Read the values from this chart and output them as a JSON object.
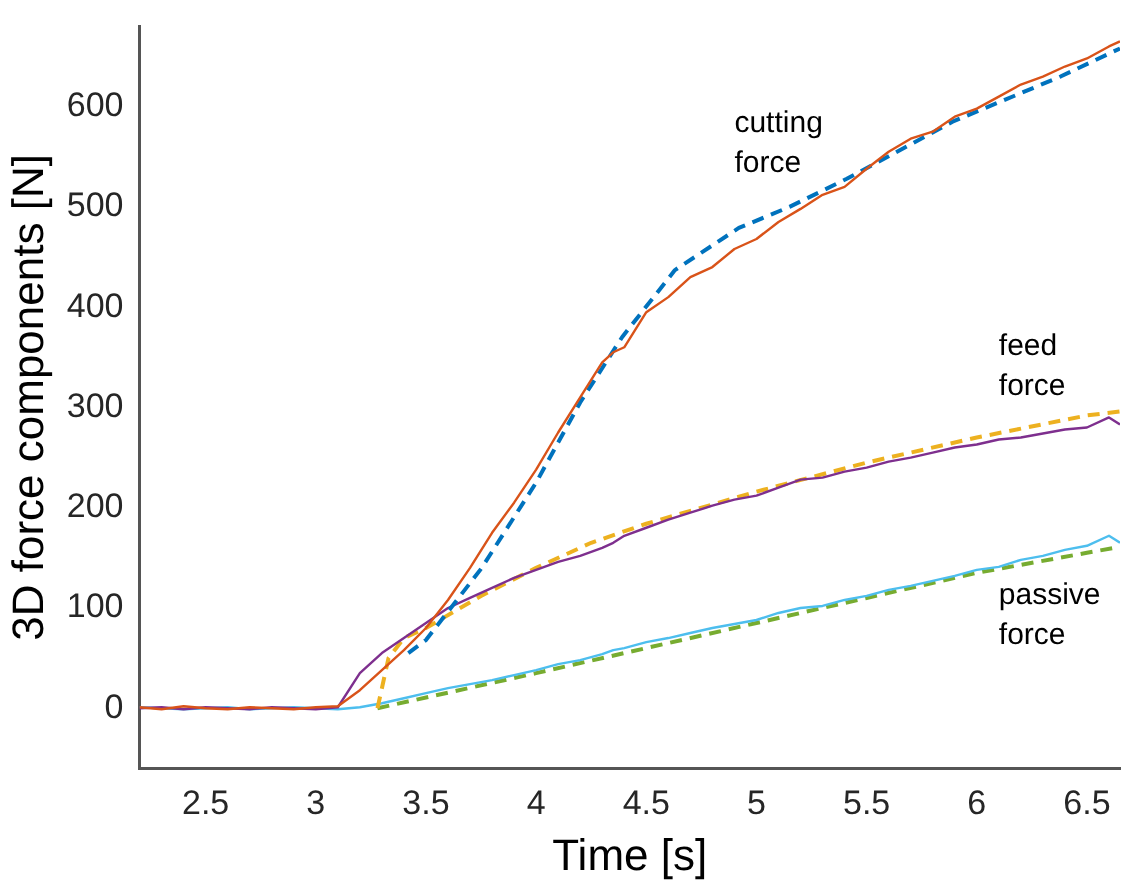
{
  "chart_data": {
    "type": "line",
    "xlabel": "Time [s]",
    "ylabel": "3D force components [N]",
    "xlim": [
      2.2,
      6.65
    ],
    "xticks": [
      2.5,
      3,
      3.5,
      4,
      4.5,
      5,
      5.5,
      6,
      6.5
    ],
    "ylim": [
      -60,
      680
    ],
    "yticks": [
      0,
      100,
      200,
      300,
      400,
      500,
      600
    ],
    "grid": false,
    "legend": false,
    "marker": "none",
    "series": [
      {
        "name": "cutting force",
        "color": "#d95319",
        "line_style": "solid",
        "x": [
          2.2,
          2.3,
          2.4,
          2.5,
          2.6,
          2.7,
          2.8,
          2.9,
          3.0,
          3.1,
          3.2,
          3.3,
          3.4,
          3.5,
          3.6,
          3.7,
          3.8,
          3.9,
          4.0,
          4.1,
          4.2,
          4.3,
          4.35,
          4.4,
          4.5,
          4.6,
          4.7,
          4.8,
          4.9,
          5.0,
          5.1,
          5.2,
          5.3,
          5.4,
          5.5,
          5.6,
          5.7,
          5.8,
          5.9,
          6.0,
          6.1,
          6.2,
          6.3,
          6.4,
          6.5,
          6.6,
          6.65
        ],
        "values": [
          1,
          -1,
          2,
          0,
          -1,
          1,
          0,
          -1,
          1,
          2,
          18,
          38,
          58,
          80,
          108,
          140,
          175,
          205,
          238,
          275,
          310,
          345,
          355,
          360,
          395,
          410,
          430,
          440,
          458,
          468,
          485,
          498,
          512,
          520,
          538,
          555,
          568,
          575,
          590,
          598,
          610,
          622,
          630,
          640,
          648,
          660,
          665
        ]
      },
      {
        "color": "#0072bd",
        "line_style": "dashed",
        "x": [
          3.42,
          3.5,
          3.75,
          4.0,
          4.2,
          4.39,
          4.63,
          4.92,
          5.15,
          5.41,
          5.89,
          6.38,
          6.65
        ],
        "values": [
          55,
          68,
          139,
          225,
          305,
          370,
          437,
          479,
          500,
          528,
          585,
          630,
          658
        ]
      },
      {
        "name": "feed force",
        "color": "#7e2f8e",
        "line_style": "solid",
        "x": [
          2.2,
          2.3,
          2.4,
          2.5,
          2.6,
          2.7,
          2.8,
          2.9,
          3.0,
          3.1,
          3.2,
          3.3,
          3.4,
          3.5,
          3.6,
          3.7,
          3.8,
          3.9,
          4.0,
          4.1,
          4.2,
          4.3,
          4.35,
          4.4,
          4.5,
          4.6,
          4.7,
          4.8,
          4.9,
          5.0,
          5.1,
          5.2,
          5.3,
          5.4,
          5.5,
          5.6,
          5.7,
          5.8,
          5.9,
          6.0,
          6.1,
          6.2,
          6.3,
          6.4,
          6.5,
          6.6,
          6.65
        ],
        "values": [
          0,
          1,
          -1,
          1,
          0,
          -1,
          1,
          0,
          -1,
          1,
          35,
          55,
          70,
          85,
          100,
          110,
          120,
          130,
          138,
          146,
          152,
          160,
          165,
          172,
          180,
          188,
          195,
          202,
          208,
          212,
          220,
          228,
          230,
          236,
          240,
          246,
          250,
          255,
          260,
          263,
          268,
          270,
          274,
          278,
          280,
          290,
          283
        ]
      },
      {
        "color": "#edb120",
        "line_style": "dashed",
        "x": [
          3.28,
          3.33,
          3.4,
          3.5,
          3.75,
          4.0,
          4.25,
          4.5,
          5.0,
          5.5,
          6.0,
          6.5,
          6.65
        ],
        "values": [
          0,
          50,
          70,
          80,
          112,
          140,
          165,
          184,
          216,
          245,
          270,
          292,
          296
        ]
      },
      {
        "name": "passive force",
        "color": "#4dbeee",
        "line_style": "solid",
        "x": [
          2.2,
          2.3,
          2.4,
          2.5,
          2.6,
          2.7,
          2.8,
          2.9,
          3.0,
          3.1,
          3.2,
          3.3,
          3.4,
          3.5,
          3.6,
          3.7,
          3.8,
          3.9,
          4.0,
          4.1,
          4.2,
          4.3,
          4.35,
          4.4,
          4.5,
          4.6,
          4.7,
          4.8,
          4.9,
          5.0,
          5.1,
          5.2,
          5.3,
          5.4,
          5.5,
          5.6,
          5.7,
          5.8,
          5.9,
          6.0,
          6.1,
          6.2,
          6.3,
          6.4,
          6.5,
          6.6,
          6.65
        ],
        "values": [
          1,
          0,
          -1,
          0,
          1,
          -1,
          0,
          1,
          0,
          -1,
          1,
          5,
          10,
          15,
          20,
          24,
          28,
          33,
          38,
          44,
          48,
          54,
          58,
          60,
          66,
          70,
          75,
          80,
          84,
          88,
          95,
          100,
          102,
          108,
          112,
          118,
          122,
          127,
          132,
          138,
          141,
          148,
          152,
          158,
          162,
          172,
          165
        ]
      },
      {
        "color": "#77ac30",
        "line_style": "dashed",
        "x": [
          3.28,
          4.0,
          4.5,
          5.0,
          5.5,
          6.0,
          6.5,
          6.65
        ],
        "values": [
          0,
          35,
          60,
          85,
          110,
          135,
          155,
          161
        ]
      }
    ]
  }
}
